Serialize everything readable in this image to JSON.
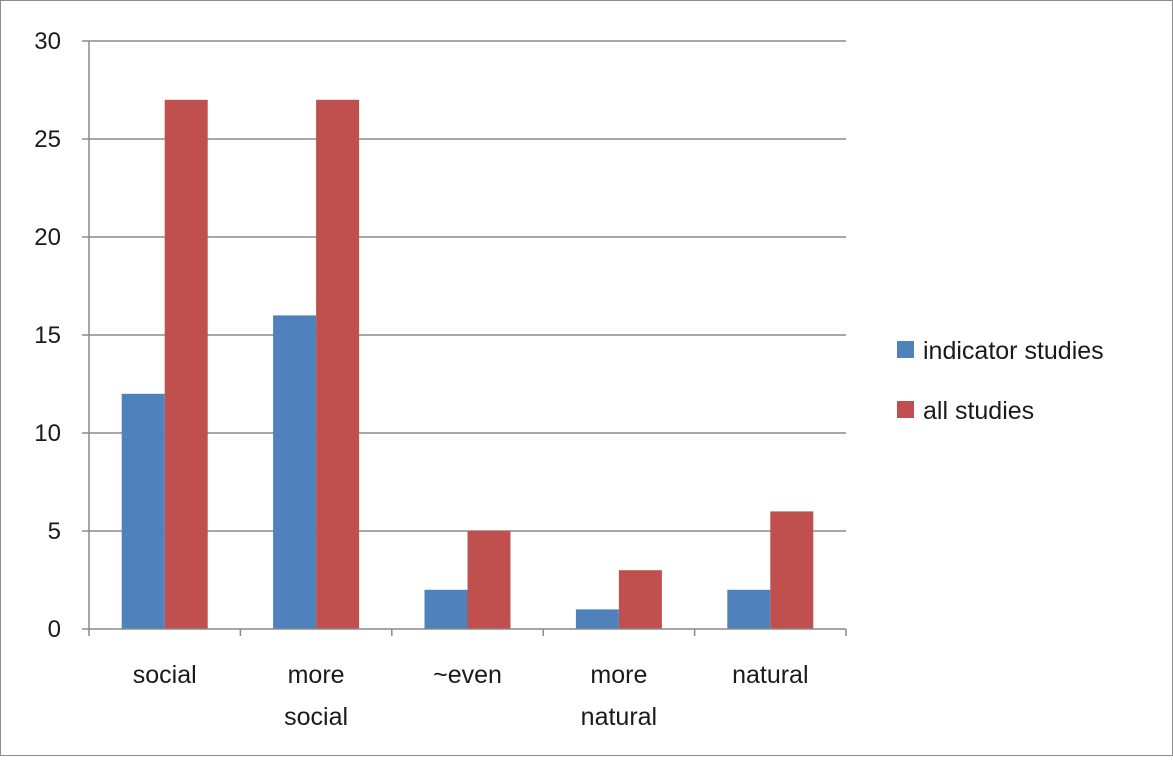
{
  "chart_data": {
    "type": "bar",
    "title": "",
    "xlabel": "",
    "ylabel": "",
    "categories": [
      [
        "social"
      ],
      [
        "more",
        "social"
      ],
      [
        "~even"
      ],
      [
        "more",
        "natural"
      ],
      [
        "natural"
      ]
    ],
    "series": [
      {
        "name": "indicator studies",
        "color": "#4f81bd",
        "values": [
          12,
          16,
          2,
          1,
          2
        ]
      },
      {
        "name": "all studies",
        "color": "#c0504d",
        "values": [
          27,
          27,
          5,
          3,
          6
        ]
      }
    ],
    "ylim": [
      0,
      30
    ],
    "yticks": [
      "0",
      "5",
      "10",
      "15",
      "20",
      "25",
      "30"
    ],
    "grid": true,
    "legend_position": "right"
  }
}
